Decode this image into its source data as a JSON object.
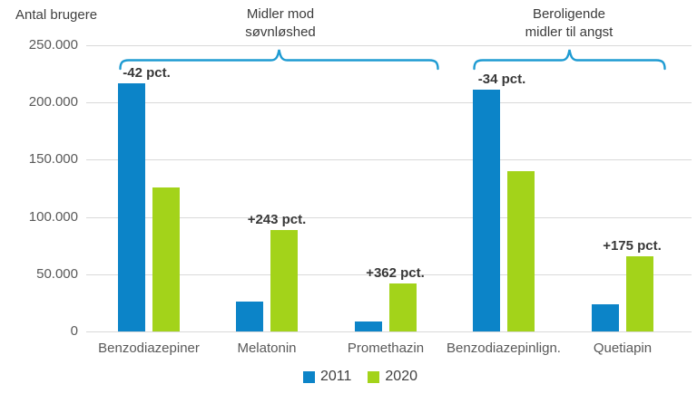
{
  "chart_data": {
    "type": "bar",
    "axis_title": "Antal brugere",
    "categories": [
      "Benzodiazepiner",
      "Melatonin",
      "Promethazin",
      "Benzodiazepinlign.",
      "Quetiapin"
    ],
    "series": [
      {
        "name": "2011",
        "color": "#0c84c8",
        "values": [
          217000,
          26000,
          9000,
          211000,
          24000
        ]
      },
      {
        "name": "2020",
        "color": "#a3d31a",
        "values": [
          126000,
          89000,
          42000,
          140000,
          66000
        ]
      }
    ],
    "ylim": [
      0,
      250000
    ],
    "ytick_labels_top_to_bottom": [
      "250.000",
      "200.000",
      "150.000",
      "100.000",
      "50.000",
      "0"
    ],
    "grid": true,
    "legend_position": "bottom",
    "bar_labels": [
      {
        "category_index": 0,
        "series": "2011",
        "text": "-42 pct."
      },
      {
        "category_index": 1,
        "series": "2020",
        "text": "+243 pct."
      },
      {
        "category_index": 2,
        "series": "2020",
        "text": "+362 pct."
      },
      {
        "category_index": 3,
        "series": "2011",
        "text": "-34 pct."
      },
      {
        "category_index": 4,
        "series": "2020",
        "text": "+175 pct."
      }
    ],
    "group_annotations": [
      {
        "lines": [
          "Midler mod",
          "søvnløshed"
        ],
        "from_category": 0,
        "to_category": 2
      },
      {
        "lines": [
          "Beroligende",
          "midler til angst"
        ],
        "from_category": 3,
        "to_category": 4
      }
    ]
  },
  "colors": {
    "bar_2011": "#0c84c8",
    "bar_2020": "#a3d31a",
    "brace": "#1e9bd2",
    "gridline": "#d9d9d9",
    "axis_text": "#595959",
    "dark_text": "#3b3b3b"
  }
}
